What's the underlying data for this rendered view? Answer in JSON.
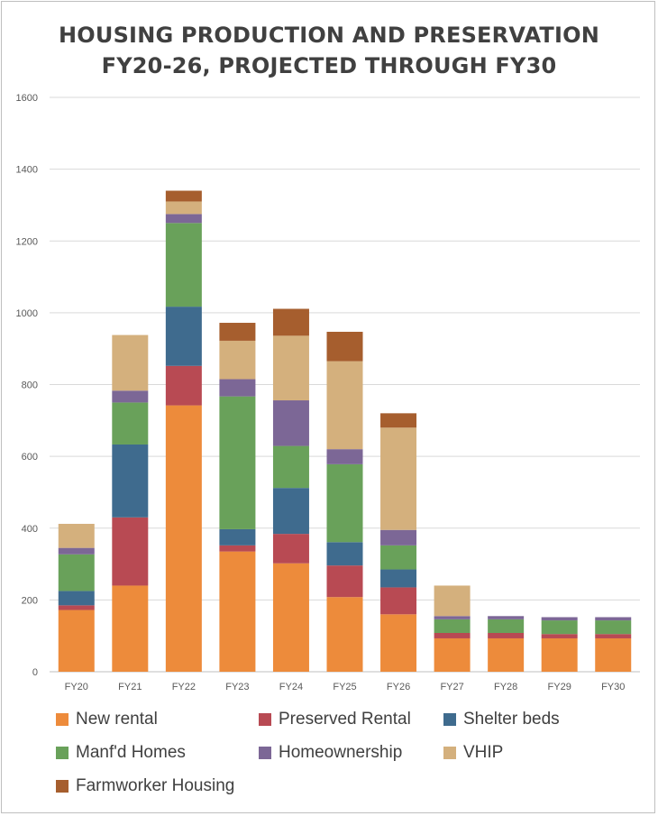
{
  "chart_data": {
    "type": "bar",
    "stacked": true,
    "title_lines": [
      "HOUSING PRODUCTION AND PRESERVATION",
      "FY20-26, PROJECTED THROUGH FY30"
    ],
    "categories": [
      "FY20",
      "FY21",
      "FY22",
      "FY23",
      "FY24",
      "FY25",
      "FY26",
      "FY27",
      "FY28",
      "FY29",
      "FY30"
    ],
    "ylim": [
      0,
      1600
    ],
    "yticks": [
      0,
      200,
      400,
      600,
      800,
      1000,
      1200,
      1400,
      1600
    ],
    "grid": true,
    "legend_position": "bottom",
    "series": [
      {
        "name": "New rental",
        "color": "#ED8B3B",
        "values": [
          172,
          240,
          742,
          335,
          302,
          208,
          160,
          93,
          93,
          93,
          93
        ]
      },
      {
        "name": "Preserved Rental",
        "color": "#B84A53",
        "values": [
          13,
          190,
          110,
          17,
          82,
          88,
          75,
          15,
          15,
          12,
          12
        ]
      },
      {
        "name": "Shelter beds",
        "color": "#3F6B8E",
        "values": [
          40,
          203,
          165,
          45,
          128,
          65,
          50,
          0,
          0,
          0,
          0
        ]
      },
      {
        "name": "Manf'd Homes",
        "color": "#69A15A",
        "values": [
          102,
          117,
          233,
          370,
          117,
          217,
          67,
          38,
          38,
          38,
          38
        ]
      },
      {
        "name": "Homeownership",
        "color": "#7C6796",
        "values": [
          18,
          33,
          25,
          48,
          127,
          42,
          43,
          9,
          9,
          9,
          9
        ]
      },
      {
        "name": "VHIP",
        "color": "#D4B07D",
        "values": [
          67,
          155,
          35,
          107,
          180,
          245,
          285,
          85,
          0,
          0,
          0
        ]
      },
      {
        "name": "Farmworker Housing",
        "color": "#A65E2E",
        "values": [
          0,
          0,
          30,
          50,
          75,
          82,
          40,
          0,
          0,
          0,
          0
        ]
      }
    ]
  }
}
